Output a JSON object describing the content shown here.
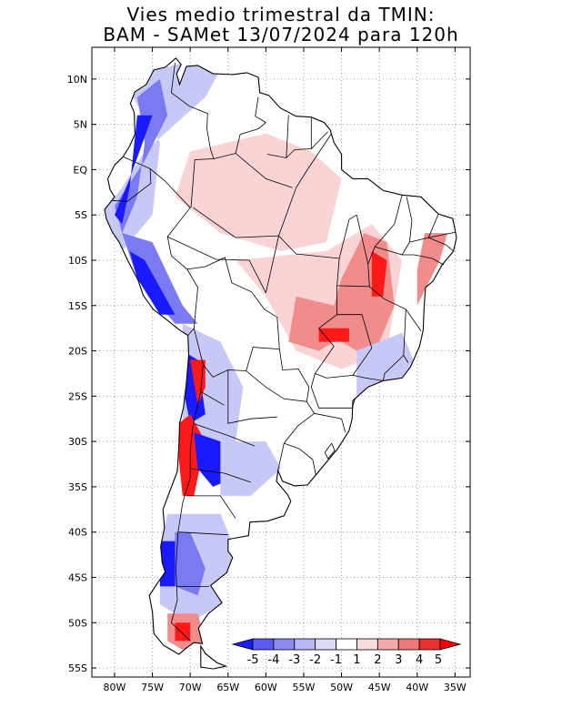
{
  "title": {
    "line1": "Vies medio trimestral da TMIN:",
    "line2": "BAM - SAMet 13/07/2024  para 120h"
  },
  "axes": {
    "lat_labels": [
      "10N",
      "5N",
      "EQ",
      "5S",
      "10S",
      "15S",
      "20S",
      "25S",
      "30S",
      "35S",
      "40S",
      "45S",
      "50S",
      "55S"
    ],
    "lat_values": [
      10,
      5,
      0,
      -5,
      -10,
      -15,
      -20,
      -25,
      -30,
      -35,
      -40,
      -45,
      -50,
      -55
    ],
    "lon_labels": [
      "80W",
      "75W",
      "70W",
      "65W",
      "60W",
      "55W",
      "50W",
      "45W",
      "40W",
      "35W"
    ],
    "lon_values": [
      -80,
      -75,
      -70,
      -65,
      -60,
      -55,
      -50,
      -45,
      -40,
      -35
    ],
    "lon_range": [
      -83,
      -33
    ],
    "lat_range": [
      -56,
      13.5
    ],
    "grid": "dotted"
  },
  "colorbar": {
    "labels": [
      "-5",
      "-4",
      "-3",
      "-2",
      "-1",
      "1",
      "2",
      "3",
      "4",
      "5"
    ],
    "colors": [
      "#1a1aff",
      "#5a5af5",
      "#8a8af0",
      "#b8b8f5",
      "#dcdcfa",
      "#ffffff",
      "#fadcdc",
      "#f5a8a8",
      "#f07878",
      "#e83030",
      "#ff0000"
    ]
  },
  "field_colors": {
    "land": "#ffffff",
    "cold_strong": "#1a1aff",
    "cold": "#7a7af2",
    "cold_light": "#c8c8f7",
    "warm_light": "#fad4d4",
    "warm": "#f08c8c",
    "warm_strong": "#ff1a1a"
  }
}
